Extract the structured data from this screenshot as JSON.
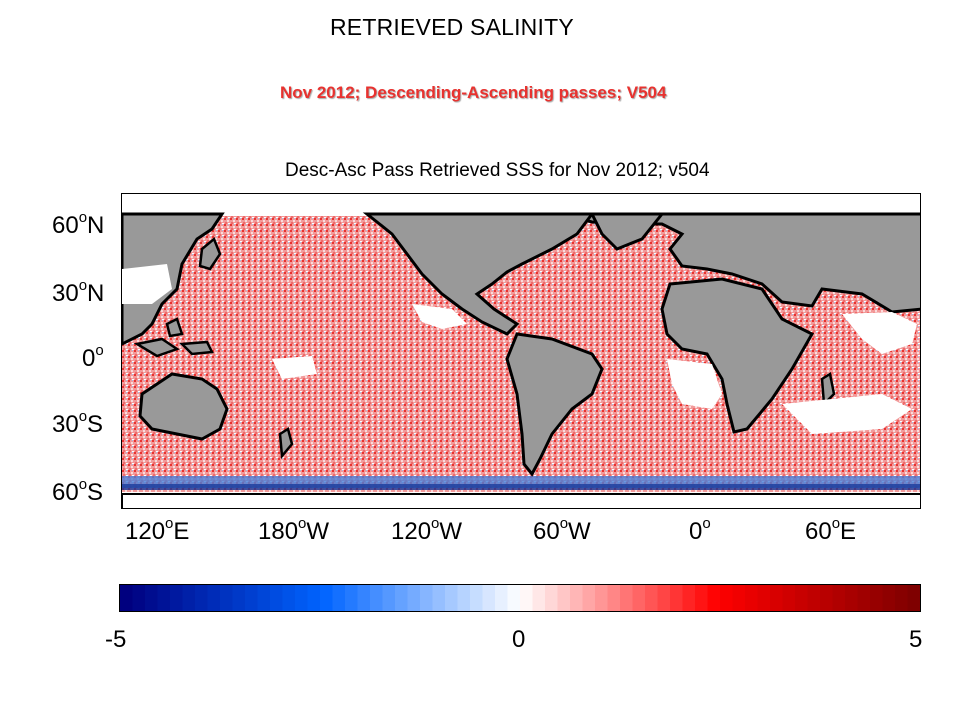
{
  "slide": {
    "title": "RETRIEVED SALINITY",
    "subtitle": "Nov 2012; Descending-Ascending passes; V504"
  },
  "map": {
    "title": "Desc-Asc Pass Retrieved SSS for Nov 2012; v504",
    "lat_labels": [
      {
        "deg": "60",
        "hemi": "N"
      },
      {
        "deg": "30",
        "hemi": "N"
      },
      {
        "deg": "0",
        "hemi": ""
      },
      {
        "deg": "30",
        "hemi": "S"
      },
      {
        "deg": "60",
        "hemi": "S"
      }
    ],
    "lon_labels": [
      {
        "deg": "120",
        "hemi": "E"
      },
      {
        "deg": "180",
        "hemi": "W"
      },
      {
        "deg": "120",
        "hemi": "W"
      },
      {
        "deg": "60",
        "hemi": "W"
      },
      {
        "deg": "0",
        "hemi": ""
      },
      {
        "deg": "60",
        "hemi": "E"
      }
    ],
    "colors": {
      "land": "#999999",
      "coast": "#000000",
      "no_data": "#ffffff",
      "positive": "#e8322f",
      "negative": "#1e64d2"
    }
  },
  "colorbar": {
    "min_label": "-5",
    "mid_label": "0",
    "max_label": "5",
    "min": -5,
    "max": 5,
    "colors": [
      "#00007f",
      "#0064ff",
      "#ffffff",
      "#ff0000",
      "#7f0000"
    ]
  }
}
